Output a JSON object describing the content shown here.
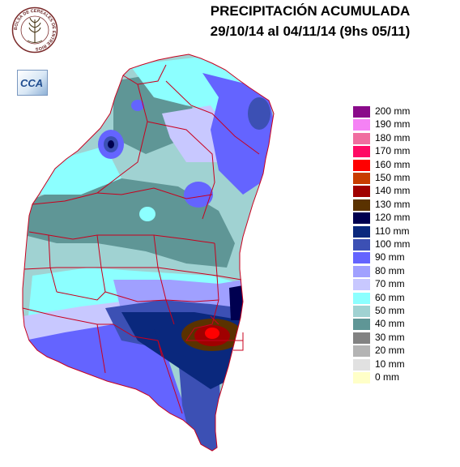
{
  "title": {
    "line1": "PRECIPITACIÓN ACUMULADA",
    "line2": "29/10/14 al 04/11/14 (9hs 05/11)"
  },
  "logos": {
    "bolsa_seal_text": "BOLSA DE CEREALES DE ENTRE RIOS",
    "cca_text": "CCA"
  },
  "legend": [
    {
      "label": "200 mm",
      "color": "#8a0a8a"
    },
    {
      "label": "190 mm",
      "color": "#f582f5"
    },
    {
      "label": "180 mm",
      "color": "#f06ea0"
    },
    {
      "label": "170 mm",
      "color": "#ff0a64"
    },
    {
      "label": "160 mm",
      "color": "#ff0000"
    },
    {
      "label": "150 mm",
      "color": "#c83c00"
    },
    {
      "label": "140 mm",
      "color": "#a00000"
    },
    {
      "label": "130 mm",
      "color": "#5a3200"
    },
    {
      "label": "120 mm",
      "color": "#000050"
    },
    {
      "label": "110 mm",
      "color": "#0a287d"
    },
    {
      "label": "100 mm",
      "color": "#3c50b4"
    },
    {
      "label": "90 mm",
      "color": "#6464ff"
    },
    {
      "label": "80 mm",
      "color": "#a0a0ff"
    },
    {
      "label": "70 mm",
      "color": "#c8c8ff"
    },
    {
      "label": "60 mm",
      "color": "#8cffff"
    },
    {
      "label": "50 mm",
      "color": "#a0d2d2"
    },
    {
      "label": "40 mm",
      "color": "#5f9696"
    },
    {
      "label": "30 mm",
      "color": "#828282"
    },
    {
      "label": "20 mm",
      "color": "#b4b4b4"
    },
    {
      "label": "10 mm",
      "color": "#e1e1e1"
    },
    {
      "label": "0 mm",
      "color": "#ffffc8"
    }
  ],
  "map": {
    "colors": {
      "base": "#a0d2d2",
      "teal": "#5f9696",
      "cyan": "#8cffff",
      "lavender": "#c8c8ff",
      "light_blue": "#a0a0ff",
      "blue": "#6464ff",
      "mid_blue": "#3c50b4",
      "dark_blue": "#0a287d",
      "navy": "#000050",
      "brown": "#5a3200",
      "dark_red": "#a00000",
      "red": "#ff0000",
      "border": "#c8001e"
    }
  }
}
